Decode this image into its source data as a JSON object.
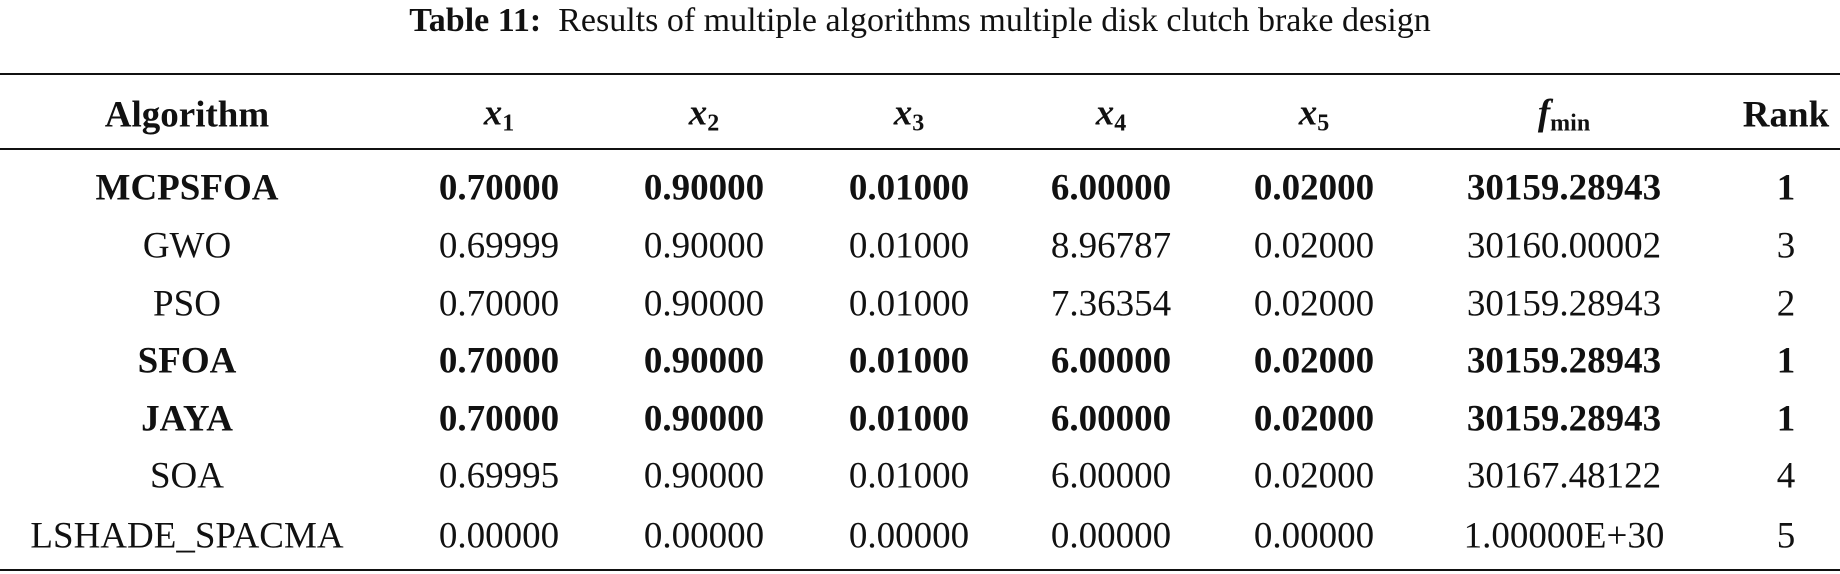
{
  "caption": {
    "label": "Table 11:",
    "text": "Results of multiple algorithms multiple disk clutch brake design"
  },
  "table": {
    "headers": [
      "Algorithm",
      {
        "symbol": "x",
        "subscript": "1"
      },
      {
        "symbol": "x",
        "subscript": "2"
      },
      {
        "symbol": "x",
        "subscript": "3"
      },
      {
        "symbol": "x",
        "subscript": "4"
      },
      {
        "symbol": "x",
        "subscript": "5"
      },
      {
        "symbol": "f",
        "subscript": "min"
      },
      "Rank"
    ],
    "rows": [
      [
        "MCPSFOA",
        "0.70000",
        "0.90000",
        "0.01000",
        "6.00000",
        "0.02000",
        "30159.28943",
        "1"
      ],
      [
        "GWO",
        "0.69999",
        "0.90000",
        "0.01000",
        "8.96787",
        "0.02000",
        "30160.00002",
        "3"
      ],
      [
        "PSO",
        "0.70000",
        "0.90000",
        "0.01000",
        "7.36354",
        "0.02000",
        "30159.28943",
        "2"
      ],
      [
        "SFOA",
        "0.70000",
        "0.90000",
        "0.01000",
        "6.00000",
        "0.02000",
        "30159.28943",
        "1"
      ],
      [
        "JAYA",
        "0.70000",
        "0.90000",
        "0.01000",
        "6.00000",
        "0.02000",
        "30159.28943",
        "1"
      ],
      [
        "SOA",
        "0.69995",
        "0.90000",
        "0.01000",
        "6.00000",
        "0.02000",
        "30167.48122",
        "4"
      ],
      [
        "LSHADE_SPACMA",
        "0.00000",
        "0.00000",
        "0.00000",
        "0.00000",
        "0.00000",
        "1.00000E+30",
        "5"
      ]
    ],
    "bold_rows": [
      0,
      3,
      4
    ]
  }
}
